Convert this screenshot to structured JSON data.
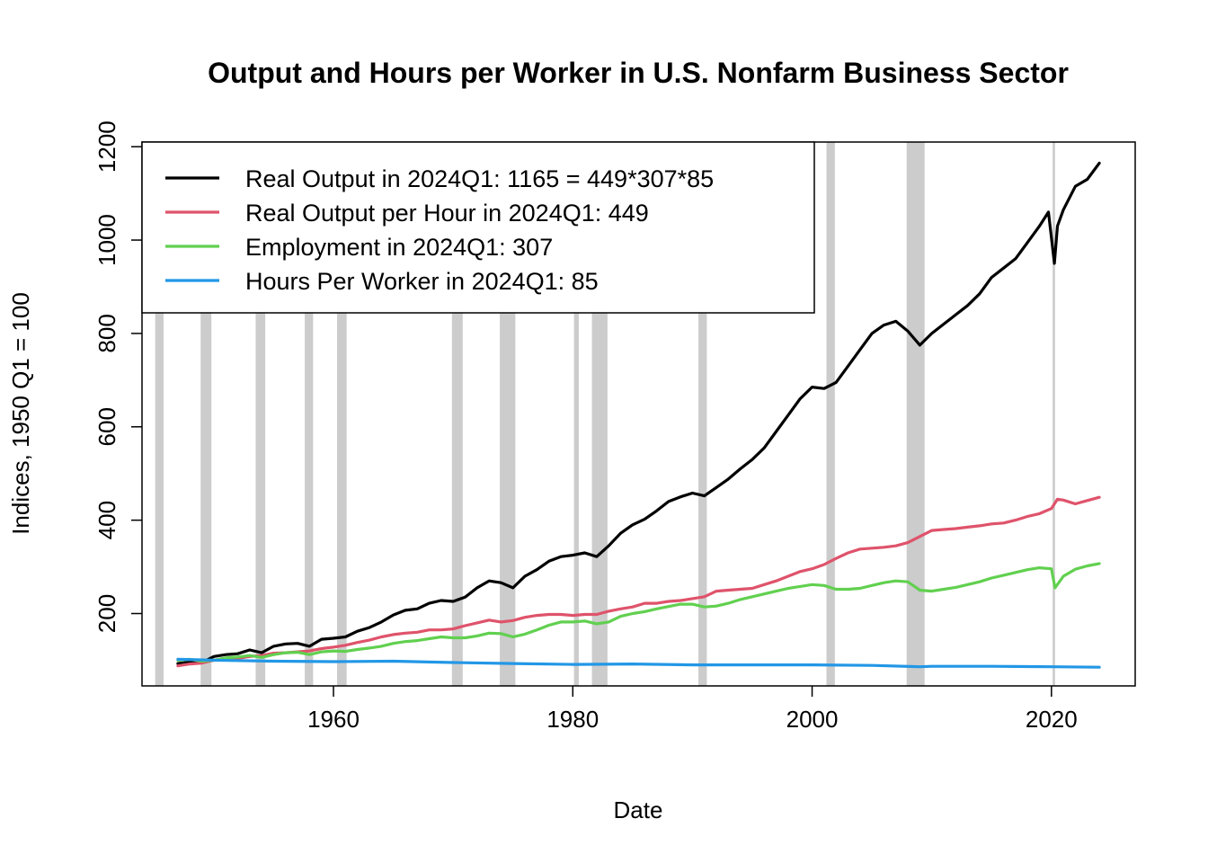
{
  "chart_data": {
    "type": "line",
    "title": "Output and Hours per Worker in U.S. Nonfarm Business Sector",
    "xlabel": "Date",
    "ylabel": "Indices, 1950 Q1 = 100",
    "xlim": [
      1944,
      2027
    ],
    "ylim": [
      45,
      1210
    ],
    "x_ticks": [
      1960,
      1980,
      2000,
      2020
    ],
    "y_ticks": [
      200,
      400,
      600,
      800,
      1000,
      1200
    ],
    "grid": false,
    "legend_position": "top-left",
    "recessions": [
      [
        1945.1,
        1945.8
      ],
      [
        1948.9,
        1949.8
      ],
      [
        1953.5,
        1954.3
      ],
      [
        1957.6,
        1958.3
      ],
      [
        1960.3,
        1961.1
      ],
      [
        1969.9,
        1970.8
      ],
      [
        1973.9,
        1975.2
      ],
      [
        1980.1,
        1980.5
      ],
      [
        1981.6,
        1982.9
      ],
      [
        1990.5,
        1991.2
      ],
      [
        2001.2,
        2001.9
      ],
      [
        2007.9,
        2009.4
      ],
      [
        2020.1,
        2020.3
      ]
    ],
    "series": [
      {
        "name": "Real Output in 2024Q1: 1165 = 449*307*85",
        "color": "#000000",
        "x": [
          1947,
          1948,
          1949,
          1950,
          1951,
          1952,
          1953,
          1954,
          1955,
          1956,
          1957,
          1958,
          1959,
          1960,
          1961,
          1962,
          1963,
          1964,
          1965,
          1966,
          1967,
          1968,
          1969,
          1970,
          1971,
          1972,
          1973,
          1974,
          1975,
          1976,
          1977,
          1978,
          1979,
          1980,
          1981,
          1982,
          1983,
          1984,
          1985,
          1986,
          1987,
          1988,
          1989,
          1990,
          1991,
          1992,
          1993,
          1994,
          1995,
          1996,
          1997,
          1998,
          1999,
          2000,
          2001,
          2002,
          2003,
          2004,
          2005,
          2006,
          2007,
          2008,
          2009,
          2010,
          2011,
          2012,
          2013,
          2014,
          2015,
          2016,
          2017,
          2018,
          2019,
          2019.75,
          2020.25,
          2020.5,
          2021,
          2022,
          2023,
          2024
        ],
        "y": [
          93,
          96,
          95,
          108,
          112,
          114,
          122,
          116,
          130,
          135,
          136,
          130,
          145,
          147,
          150,
          162,
          170,
          182,
          197,
          207,
          210,
          222,
          228,
          226,
          235,
          255,
          270,
          266,
          255,
          280,
          294,
          312,
          322,
          325,
          330,
          322,
          345,
          372,
          390,
          402,
          420,
          440,
          450,
          458,
          452,
          470,
          488,
          510,
          530,
          555,
          590,
          625,
          660,
          685,
          682,
          695,
          730,
          765,
          800,
          818,
          826,
          805,
          775,
          800,
          820,
          840,
          860,
          885,
          920,
          940,
          960,
          995,
          1030,
          1060,
          950,
          1030,
          1065,
          1115,
          1130,
          1165
        ]
      },
      {
        "name": "Real Output per Hour in 2024Q1: 449",
        "color": "#DF536B",
        "x": [
          1947,
          1948,
          1949,
          1950,
          1951,
          1952,
          1953,
          1954,
          1955,
          1956,
          1957,
          1958,
          1959,
          1960,
          1961,
          1962,
          1963,
          1964,
          1965,
          1966,
          1967,
          1968,
          1969,
          1970,
          1971,
          1972,
          1973,
          1974,
          1975,
          1976,
          1977,
          1978,
          1979,
          1980,
          1981,
          1982,
          1983,
          1984,
          1985,
          1986,
          1987,
          1988,
          1989,
          1990,
          1991,
          1992,
          1993,
          1994,
          1995,
          1996,
          1997,
          1998,
          1999,
          2000,
          2001,
          2002,
          2003,
          2004,
          2005,
          2006,
          2007,
          2008,
          2009,
          2010,
          2011,
          2012,
          2013,
          2014,
          2015,
          2016,
          2017,
          2018,
          2019,
          2020,
          2020.5,
          2021,
          2022,
          2023,
          2024
        ],
        "y": [
          88,
          92,
          94,
          100,
          102,
          104,
          108,
          110,
          115,
          116,
          118,
          120,
          125,
          128,
          132,
          138,
          143,
          150,
          155,
          158,
          160,
          165,
          165,
          167,
          174,
          180,
          186,
          182,
          185,
          192,
          196,
          198,
          198,
          196,
          198,
          198,
          205,
          210,
          214,
          222,
          222,
          226,
          228,
          232,
          236,
          248,
          250,
          252,
          254,
          262,
          270,
          280,
          290,
          296,
          305,
          318,
          330,
          338,
          340,
          342,
          345,
          352,
          365,
          378,
          380,
          382,
          385,
          388,
          392,
          394,
          400,
          408,
          414,
          425,
          445,
          443,
          435,
          442,
          449
        ]
      },
      {
        "name": "Employment in 2024Q1: 307",
        "color": "#61D04F",
        "x": [
          1947,
          1948,
          1949,
          1950,
          1951,
          1952,
          1953,
          1954,
          1955,
          1956,
          1957,
          1958,
          1959,
          1960,
          1961,
          1962,
          1963,
          1964,
          1965,
          1966,
          1967,
          1968,
          1969,
          1970,
          1971,
          1972,
          1973,
          1974,
          1975,
          1976,
          1977,
          1978,
          1979,
          1980,
          1981,
          1982,
          1983,
          1984,
          1985,
          1986,
          1987,
          1988,
          1989,
          1990,
          1991,
          1992,
          1993,
          1994,
          1995,
          1996,
          1997,
          1998,
          1999,
          2000,
          2001,
          2002,
          2003,
          2004,
          2005,
          2006,
          2007,
          2008,
          2009,
          2010,
          2011,
          2012,
          2013,
          2014,
          2015,
          2016,
          2017,
          2018,
          2019,
          2020,
          2020.3,
          2021,
          2022,
          2023,
          2024
        ],
        "y": [
          100,
          102,
          98,
          100,
          105,
          107,
          110,
          106,
          112,
          116,
          117,
          112,
          118,
          120,
          119,
          123,
          126,
          130,
          136,
          140,
          142,
          146,
          150,
          148,
          148,
          152,
          158,
          157,
          150,
          156,
          165,
          175,
          182,
          182,
          184,
          178,
          182,
          194,
          200,
          204,
          210,
          215,
          220,
          220,
          214,
          216,
          222,
          230,
          236,
          242,
          248,
          254,
          258,
          262,
          260,
          252,
          252,
          254,
          260,
          266,
          270,
          268,
          250,
          248,
          252,
          256,
          262,
          268,
          276,
          282,
          288,
          294,
          298,
          296,
          255,
          280,
          295,
          302,
          307
        ]
      },
      {
        "name": "Hours Per Worker in 2024Q1: 85",
        "color": "#2297E6",
        "x": [
          1947,
          1950,
          1955,
          1960,
          1965,
          1970,
          1975,
          1980,
          1985,
          1990,
          1995,
          2000,
          2005,
          2009,
          2010,
          2015,
          2020,
          2024
        ],
        "y": [
          102,
          100,
          98,
          97,
          98,
          95,
          93,
          91,
          92,
          90,
          90,
          90,
          89,
          86,
          87,
          87,
          86,
          85
        ]
      }
    ]
  }
}
